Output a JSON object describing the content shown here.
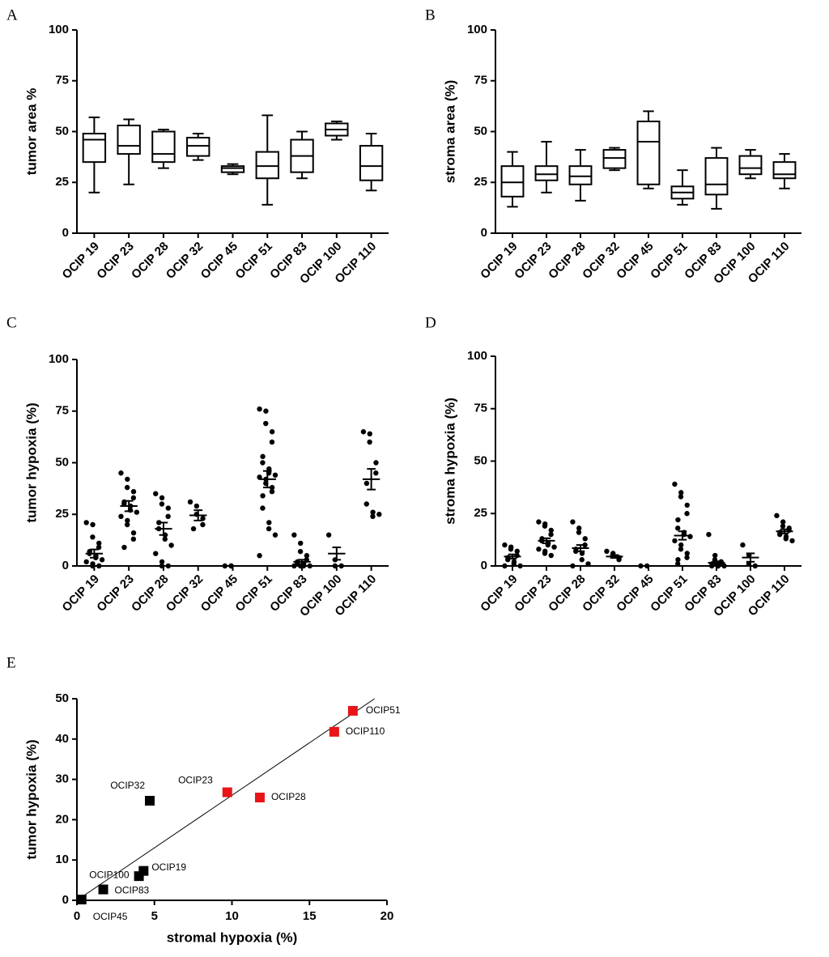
{
  "chart_data": [
    {
      "type": "box",
      "label": "A",
      "ylabel": "tumor area %",
      "categories": [
        "OCIP 19",
        "OCIP 23",
        "OCIP 28",
        "OCIP 32",
        "OCIP 45",
        "OCIP 51",
        "OCIP 83",
        "OCIP 100",
        "OCIP 110"
      ],
      "boxes": [
        {
          "min": 20,
          "q1": 35,
          "median": 46,
          "q3": 49,
          "max": 57
        },
        {
          "min": 24,
          "q1": 39,
          "median": 43,
          "q3": 53,
          "max": 56
        },
        {
          "min": 32,
          "q1": 35,
          "median": 39,
          "q3": 50,
          "max": 51
        },
        {
          "min": 36,
          "q1": 38,
          "median": 43,
          "q3": 47,
          "max": 49
        },
        {
          "min": 29,
          "q1": 30,
          "median": 32,
          "q3": 33,
          "max": 34
        },
        {
          "min": 14,
          "q1": 27,
          "median": 33,
          "q3": 40,
          "max": 58
        },
        {
          "min": 27,
          "q1": 30,
          "median": 38,
          "q3": 46,
          "max": 50
        },
        {
          "min": 46,
          "q1": 48,
          "median": 51,
          "q3": 54,
          "max": 55
        },
        {
          "min": 21,
          "q1": 26,
          "median": 33,
          "q3": 43,
          "max": 49
        }
      ],
      "ylim": [
        0,
        100
      ],
      "yticks": [
        0,
        25,
        50,
        75,
        100
      ]
    },
    {
      "type": "box",
      "label": "B",
      "ylabel": "stroma area (%)",
      "categories": [
        "OCIP 19",
        "OCIP 23",
        "OCIP 28",
        "OCIP 32",
        "OCIP 45",
        "OCIP 51",
        "OCIP 83",
        "OCIP 100",
        "OCIP 110"
      ],
      "boxes": [
        {
          "min": 13,
          "q1": 18,
          "median": 25,
          "q3": 33,
          "max": 40
        },
        {
          "min": 20,
          "q1": 26,
          "median": 29,
          "q3": 33,
          "max": 45
        },
        {
          "min": 16,
          "q1": 24,
          "median": 28,
          "q3": 33,
          "max": 41
        },
        {
          "min": 31,
          "q1": 32,
          "median": 37,
          "q3": 41,
          "max": 42
        },
        {
          "min": 22,
          "q1": 24,
          "median": 45,
          "q3": 55,
          "max": 60
        },
        {
          "min": 14,
          "q1": 17,
          "median": 20,
          "q3": 23,
          "max": 31
        },
        {
          "min": 12,
          "q1": 19,
          "median": 24,
          "q3": 37,
          "max": 42
        },
        {
          "min": 27,
          "q1": 29,
          "median": 32,
          "q3": 38,
          "max": 41
        },
        {
          "min": 22,
          "q1": 27,
          "median": 29,
          "q3": 35,
          "max": 39
        }
      ],
      "ylim": [
        0,
        100
      ],
      "yticks": [
        0,
        25,
        50,
        75,
        100
      ]
    },
    {
      "type": "dot",
      "label": "C",
      "ylabel": "tumor hypoxia (%)",
      "categories": [
        "OCIP 19",
        "OCIP 23",
        "OCIP 28",
        "OCIP 32",
        "OCIP 45",
        "OCIP 51",
        "OCIP 83",
        "OCIP 100",
        "OCIP 110"
      ],
      "groups": [
        {
          "mean": 6,
          "sem": 2,
          "points": [
            21,
            20,
            14,
            11,
            9,
            7,
            6,
            5,
            4,
            3,
            2,
            1,
            0,
            0
          ]
        },
        {
          "mean": 29,
          "sem": 2.5,
          "points": [
            45,
            42,
            38,
            36,
            33,
            31,
            30,
            29,
            27,
            26,
            24,
            22,
            20,
            16,
            13,
            9
          ]
        },
        {
          "mean": 18,
          "sem": 3,
          "points": [
            35,
            33,
            30,
            28,
            24,
            21,
            18,
            15,
            13,
            10,
            6,
            2,
            0,
            0
          ]
        },
        {
          "mean": 24.5,
          "sem": 2.5,
          "points": [
            31,
            29,
            25,
            23,
            20,
            18
          ]
        },
        {
          "mean": 0,
          "sem": 0,
          "points": [
            0,
            0,
            0
          ]
        },
        {
          "mean": 42,
          "sem": 4,
          "points": [
            76,
            75,
            69,
            65,
            60,
            53,
            50,
            47,
            45,
            44,
            43,
            42,
            40,
            38,
            36,
            34,
            28,
            21,
            18,
            15,
            5
          ]
        },
        {
          "mean": 2,
          "sem": 1,
          "points": [
            15,
            11,
            7,
            5,
            3,
            2,
            1,
            1,
            0,
            0,
            0,
            0
          ]
        },
        {
          "mean": 6,
          "sem": 3,
          "points": [
            15,
            3,
            0,
            0
          ]
        },
        {
          "mean": 42,
          "sem": 5,
          "points": [
            65,
            64,
            60,
            50,
            45,
            40,
            30,
            26,
            24,
            25
          ]
        }
      ],
      "ylim": [
        0,
        100
      ],
      "yticks": [
        0,
        25,
        50,
        75,
        100
      ]
    },
    {
      "type": "dot",
      "label": "D",
      "ylabel": "stroma hypoxia (%)",
      "categories": [
        "OCIP 19",
        "OCIP 23",
        "OCIP 28",
        "OCIP 32",
        "OCIP 45",
        "OCIP 51",
        "OCIP 83",
        "OCIP 100",
        "OCIP 110"
      ],
      "groups": [
        {
          "mean": 4.5,
          "sem": 1,
          "points": [
            10,
            9,
            8,
            7,
            5,
            4,
            3,
            2,
            1,
            0,
            0
          ]
        },
        {
          "mean": 12,
          "sem": 1.2,
          "points": [
            21,
            20,
            19,
            17,
            15,
            13,
            12,
            11,
            10,
            9,
            8,
            7,
            6,
            5
          ]
        },
        {
          "mean": 8.5,
          "sem": 1.5,
          "points": [
            21,
            18,
            16,
            13,
            10,
            8,
            7,
            6,
            3,
            1,
            0
          ]
        },
        {
          "mean": 4.5,
          "sem": 0.7,
          "points": [
            7,
            6,
            5,
            4,
            3
          ]
        },
        {
          "mean": 0,
          "sem": 0,
          "points": [
            0,
            0
          ]
        },
        {
          "mean": 14.5,
          "sem": 2,
          "points": [
            39,
            35,
            33,
            29,
            25,
            22,
            18,
            16,
            15,
            14,
            12,
            10,
            8,
            6,
            4,
            3,
            1
          ]
        },
        {
          "mean": 1.5,
          "sem": 0.7,
          "points": [
            15,
            5,
            3,
            2,
            1,
            1,
            0,
            0,
            0,
            0
          ]
        },
        {
          "mean": 4,
          "sem": 2,
          "points": [
            10,
            5,
            1,
            0
          ]
        },
        {
          "mean": 16.5,
          "sem": 1,
          "points": [
            24,
            21,
            19,
            18,
            17,
            16,
            15,
            14,
            13,
            12
          ]
        }
      ],
      "ylim": [
        0,
        100
      ],
      "yticks": [
        0,
        25,
        50,
        75,
        100
      ]
    },
    {
      "type": "scatter",
      "label": "E",
      "xlabel": "stromal hypoxia (%)",
      "ylabel": "tumor hypoxia (%)",
      "points": [
        {
          "name": "OCIP51",
          "x": 17.8,
          "y": 47,
          "color": "#e8141a"
        },
        {
          "name": "OCIP110",
          "x": 16.6,
          "y": 41.8,
          "color": "#e8141a"
        },
        {
          "name": "OCIP23",
          "x": 9.7,
          "y": 26.8,
          "color": "#e8141a"
        },
        {
          "name": "OCIP28",
          "x": 11.8,
          "y": 25.5,
          "color": "#e8141a"
        },
        {
          "name": "OCIP32",
          "x": 4.7,
          "y": 24.7,
          "color": "#000000"
        },
        {
          "name": "OCIP19",
          "x": 4.3,
          "y": 7.3,
          "color": "#000000"
        },
        {
          "name": "OCIP100",
          "x": 4.0,
          "y": 6.0,
          "color": "#000000"
        },
        {
          "name": "OCIP83",
          "x": 1.7,
          "y": 2.7,
          "color": "#000000"
        },
        {
          "name": "OCIP45",
          "x": 0.3,
          "y": 0.2,
          "color": "#000000"
        }
      ],
      "fit_line": {
        "x": [
          0,
          19.2
        ],
        "y": [
          0,
          50
        ]
      },
      "xlim": [
        0,
        20
      ],
      "xticks": [
        0,
        5,
        10,
        15,
        20
      ],
      "ylim": [
        0,
        50
      ],
      "yticks": [
        0,
        10,
        20,
        30,
        40,
        50
      ]
    }
  ]
}
